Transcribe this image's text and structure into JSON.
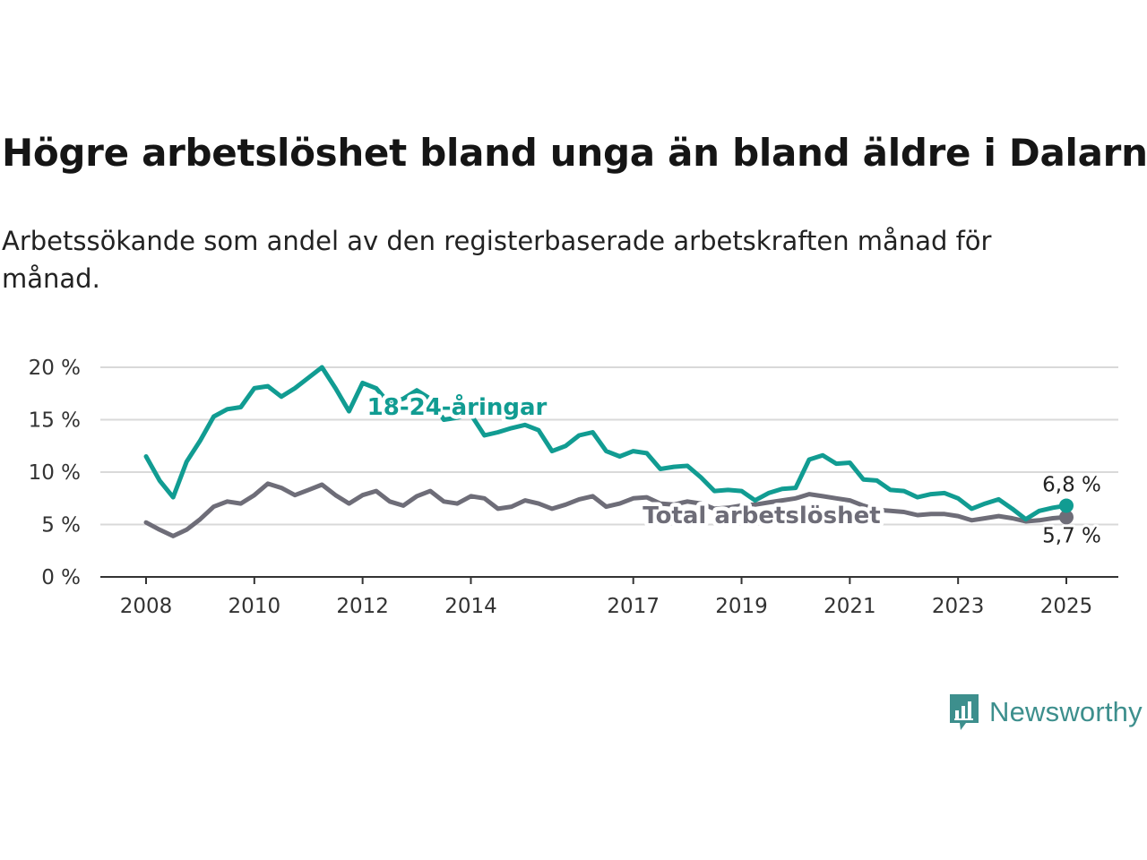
{
  "title": "Högre arbetslöshet bland unga än bland äldre i Dalarna",
  "subtitle": "Arbetssökande som andel av den registerbaserade arbetskraften månad för månad.",
  "brand": {
    "name": "Newsworthy",
    "icon": "newsworthy-bar-chart-icon",
    "color": "#3d8f8d"
  },
  "colors": {
    "youth": "#119c92",
    "total": "#6e6d78",
    "grid": "#d9d9d9",
    "axis": "#333333"
  },
  "chart_data": {
    "type": "line",
    "title": "Högre arbetslöshet bland unga än bland äldre i Dalarna",
    "xlabel": "",
    "ylabel": "",
    "x_ticks": [
      "2008",
      "2010",
      "2012",
      "2014",
      "2017",
      "2019",
      "2021",
      "2023",
      "2025"
    ],
    "y_ticks": [
      "0 %",
      "5 %",
      "10 %",
      "15 %",
      "20 %"
    ],
    "ylim": [
      0,
      20
    ],
    "xlim": [
      "2008-01",
      "2025-01"
    ],
    "grid": true,
    "legend": "inline labels",
    "series": [
      {
        "name": "18-24-åringar",
        "color": "#119c92",
        "end_label": "6,8 %",
        "points": [
          [
            "2008-01",
            11.5
          ],
          [
            "2008-04",
            9.2
          ],
          [
            "2008-07",
            7.6
          ],
          [
            "2008-10",
            11.0
          ],
          [
            "2009-01",
            13.0
          ],
          [
            "2009-04",
            15.3
          ],
          [
            "2009-07",
            16.0
          ],
          [
            "2009-10",
            16.2
          ],
          [
            "2010-01",
            18.0
          ],
          [
            "2010-04",
            18.2
          ],
          [
            "2010-07",
            17.2
          ],
          [
            "2010-10",
            18.0
          ],
          [
            "2011-01",
            19.0
          ],
          [
            "2011-04",
            20.0
          ],
          [
            "2011-07",
            18.0
          ],
          [
            "2011-10",
            15.8
          ],
          [
            "2012-01",
            18.5
          ],
          [
            "2012-04",
            18.0
          ],
          [
            "2012-07",
            16.5
          ],
          [
            "2012-10",
            17.0
          ],
          [
            "2013-01",
            17.8
          ],
          [
            "2013-04",
            17.0
          ],
          [
            "2013-07",
            15.0
          ],
          [
            "2013-10",
            15.2
          ],
          [
            "2014-01",
            15.5
          ],
          [
            "2014-04",
            13.5
          ],
          [
            "2014-07",
            13.8
          ],
          [
            "2014-10",
            14.2
          ],
          [
            "2015-01",
            14.5
          ],
          [
            "2015-04",
            14.0
          ],
          [
            "2015-07",
            12.0
          ],
          [
            "2015-10",
            12.5
          ],
          [
            "2016-01",
            13.5
          ],
          [
            "2016-04",
            13.8
          ],
          [
            "2016-07",
            12.0
          ],
          [
            "2016-10",
            11.5
          ],
          [
            "2017-01",
            12.0
          ],
          [
            "2017-04",
            11.8
          ],
          [
            "2017-07",
            10.3
          ],
          [
            "2017-10",
            10.5
          ],
          [
            "2018-01",
            10.6
          ],
          [
            "2018-04",
            9.5
          ],
          [
            "2018-07",
            8.2
          ],
          [
            "2018-10",
            8.3
          ],
          [
            "2019-01",
            8.2
          ],
          [
            "2019-04",
            7.3
          ],
          [
            "2019-07",
            8.0
          ],
          [
            "2019-10",
            8.4
          ],
          [
            "2020-01",
            8.5
          ],
          [
            "2020-04",
            11.2
          ],
          [
            "2020-07",
            11.6
          ],
          [
            "2020-10",
            10.8
          ],
          [
            "2021-01",
            10.9
          ],
          [
            "2021-04",
            9.3
          ],
          [
            "2021-07",
            9.2
          ],
          [
            "2021-10",
            8.3
          ],
          [
            "2022-01",
            8.2
          ],
          [
            "2022-04",
            7.6
          ],
          [
            "2022-07",
            7.9
          ],
          [
            "2022-10",
            8.0
          ],
          [
            "2023-01",
            7.5
          ],
          [
            "2023-04",
            6.5
          ],
          [
            "2023-07",
            7.0
          ],
          [
            "2023-10",
            7.4
          ],
          [
            "2024-01",
            6.5
          ],
          [
            "2024-04",
            5.5
          ],
          [
            "2024-07",
            6.3
          ],
          [
            "2024-10",
            6.6
          ],
          [
            "2025-01",
            6.8
          ]
        ]
      },
      {
        "name": "Total arbetslöshet",
        "color": "#6e6d78",
        "end_label": "5,7 %",
        "points": [
          [
            "2008-01",
            5.2
          ],
          [
            "2008-04",
            4.5
          ],
          [
            "2008-07",
            3.9
          ],
          [
            "2008-10",
            4.5
          ],
          [
            "2009-01",
            5.5
          ],
          [
            "2009-04",
            6.7
          ],
          [
            "2009-07",
            7.2
          ],
          [
            "2009-10",
            7.0
          ],
          [
            "2010-01",
            7.8
          ],
          [
            "2010-04",
            8.9
          ],
          [
            "2010-07",
            8.5
          ],
          [
            "2010-10",
            7.8
          ],
          [
            "2011-01",
            8.3
          ],
          [
            "2011-04",
            8.8
          ],
          [
            "2011-07",
            7.8
          ],
          [
            "2011-10",
            7.0
          ],
          [
            "2012-01",
            7.8
          ],
          [
            "2012-04",
            8.2
          ],
          [
            "2012-07",
            7.2
          ],
          [
            "2012-10",
            6.8
          ],
          [
            "2013-01",
            7.7
          ],
          [
            "2013-04",
            8.2
          ],
          [
            "2013-07",
            7.2
          ],
          [
            "2013-10",
            7.0
          ],
          [
            "2014-01",
            7.7
          ],
          [
            "2014-04",
            7.5
          ],
          [
            "2014-07",
            6.5
          ],
          [
            "2014-10",
            6.7
          ],
          [
            "2015-01",
            7.3
          ],
          [
            "2015-04",
            7.0
          ],
          [
            "2015-07",
            6.5
          ],
          [
            "2015-10",
            6.9
          ],
          [
            "2016-01",
            7.4
          ],
          [
            "2016-04",
            7.7
          ],
          [
            "2016-07",
            6.7
          ],
          [
            "2016-10",
            7.0
          ],
          [
            "2017-01",
            7.5
          ],
          [
            "2017-04",
            7.6
          ],
          [
            "2017-07",
            7.0
          ],
          [
            "2017-10",
            6.9
          ],
          [
            "2018-01",
            7.2
          ],
          [
            "2018-04",
            7.0
          ],
          [
            "2018-07",
            6.5
          ],
          [
            "2018-10",
            6.6
          ],
          [
            "2019-01",
            6.8
          ],
          [
            "2019-04",
            6.9
          ],
          [
            "2019-07",
            7.1
          ],
          [
            "2019-10",
            7.3
          ],
          [
            "2020-01",
            7.5
          ],
          [
            "2020-04",
            7.9
          ],
          [
            "2020-07",
            7.7
          ],
          [
            "2020-10",
            7.5
          ],
          [
            "2021-01",
            7.3
          ],
          [
            "2021-04",
            6.8
          ],
          [
            "2021-07",
            6.4
          ],
          [
            "2021-10",
            6.3
          ],
          [
            "2022-01",
            6.2
          ],
          [
            "2022-04",
            5.9
          ],
          [
            "2022-07",
            6.0
          ],
          [
            "2022-10",
            6.0
          ],
          [
            "2023-01",
            5.8
          ],
          [
            "2023-04",
            5.4
          ],
          [
            "2023-07",
            5.6
          ],
          [
            "2023-10",
            5.8
          ],
          [
            "2024-01",
            5.6
          ],
          [
            "2024-04",
            5.3
          ],
          [
            "2024-07",
            5.4
          ],
          [
            "2024-10",
            5.6
          ],
          [
            "2025-01",
            5.7
          ]
        ]
      }
    ]
  }
}
